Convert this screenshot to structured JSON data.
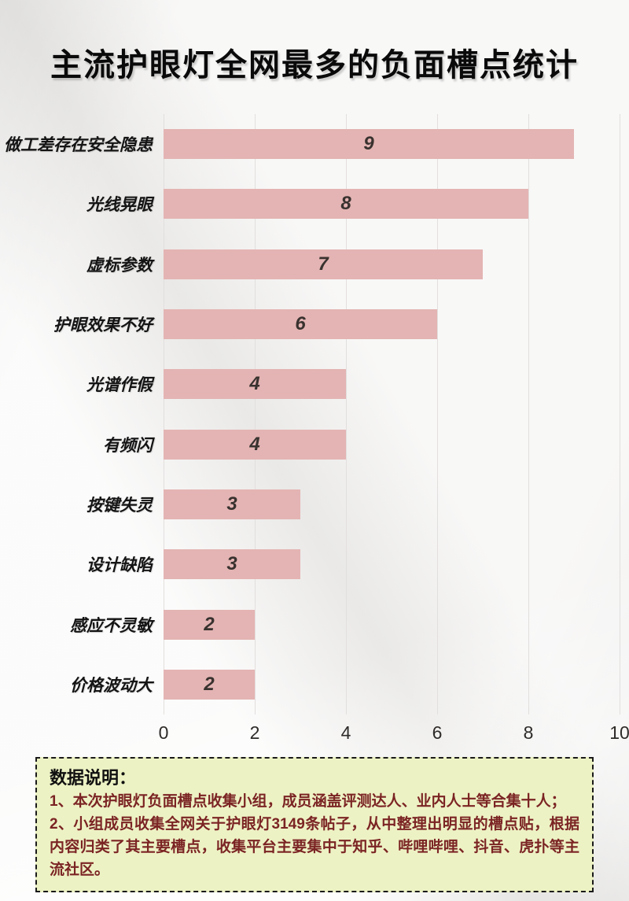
{
  "title": "主流护眼灯全网最多的负面槽点统计",
  "chart_data": {
    "type": "bar",
    "orientation": "horizontal",
    "title": "主流护眼灯全网最多的负面槽点统计",
    "categories": [
      "做工差存在安全隐患",
      "光线晃眼",
      "虚标参数",
      "护眼效果不好",
      "光谱作假",
      "有频闪",
      "按键失灵",
      "设计缺陷",
      "感应不灵敏",
      "价格波动大"
    ],
    "values": [
      9,
      8,
      7,
      6,
      4,
      4,
      3,
      3,
      2,
      2
    ],
    "xlabel": "",
    "ylabel": "",
    "xlim": [
      0,
      10
    ],
    "x_ticks": [
      0,
      2,
      4,
      6,
      8,
      10
    ],
    "grid": "vertical",
    "bar_color": "#e3b4b3",
    "grid_color": "#e2dfde",
    "value_label_position": "center"
  },
  "note": {
    "heading": "数据说明：",
    "lines": [
      "1、本次护眼灯负面槽点收集小组，成员涵盖评测达人、业内人士等合集十人；",
      "2、小组成员收集全网关于护眼灯3149条帖子，从中整理出明显的槽点贴，根据内容归类了其主要槽点，收集平台主要集中于知乎、哔哩哔哩、抖音、虎扑等主流社区。"
    ],
    "bg_color": "#edf2c4",
    "border_color": "#1a1a1a",
    "text_color": "#7b2424"
  }
}
